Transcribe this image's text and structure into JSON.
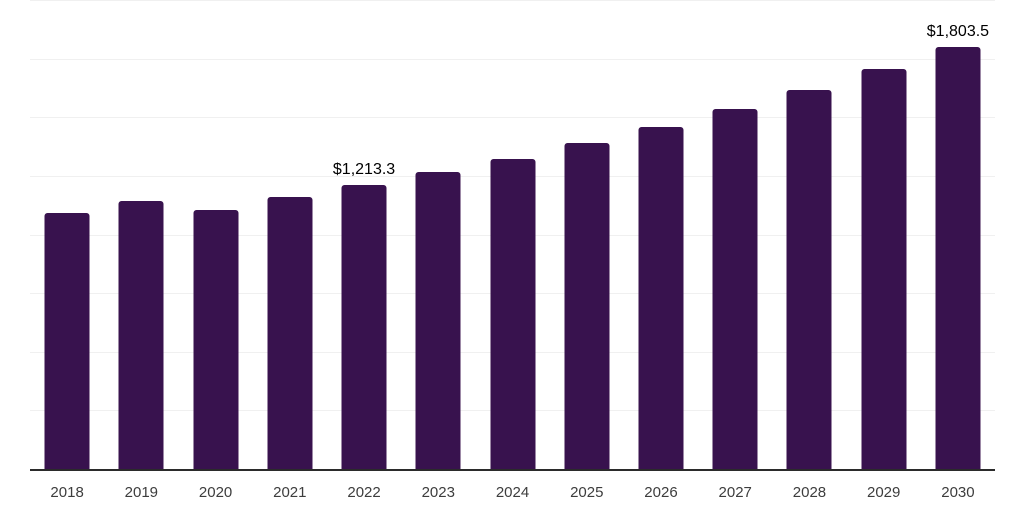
{
  "chart_data": {
    "type": "bar",
    "title": "",
    "xlabel": "",
    "ylabel": "",
    "categories": [
      "2018",
      "2019",
      "2020",
      "2021",
      "2022",
      "2023",
      "2024",
      "2025",
      "2026",
      "2027",
      "2028",
      "2029",
      "2030"
    ],
    "values": [
      1096,
      1146,
      1108,
      1163,
      1213.3,
      1272,
      1327,
      1394,
      1463,
      1538,
      1620,
      1710,
      1803.5
    ],
    "point_labels": [
      "",
      "",
      "",
      "",
      "$1,213.3",
      "",
      "",
      "",
      "",
      "",
      "",
      "",
      "$1,803.5"
    ],
    "ylim": [
      0,
      2000
    ],
    "gridline_interval": 250,
    "grid": "horizontal",
    "legend_position": "none",
    "bar_color": "#38124e"
  },
  "style": {
    "background_color": "#ffffff",
    "bar_color": "#38124e",
    "grid_color": "#f0f0f0",
    "axis_line_color": "#2b2b2b",
    "tick_label_color": "#3d3d3d",
    "data_label_color": "#000000"
  }
}
